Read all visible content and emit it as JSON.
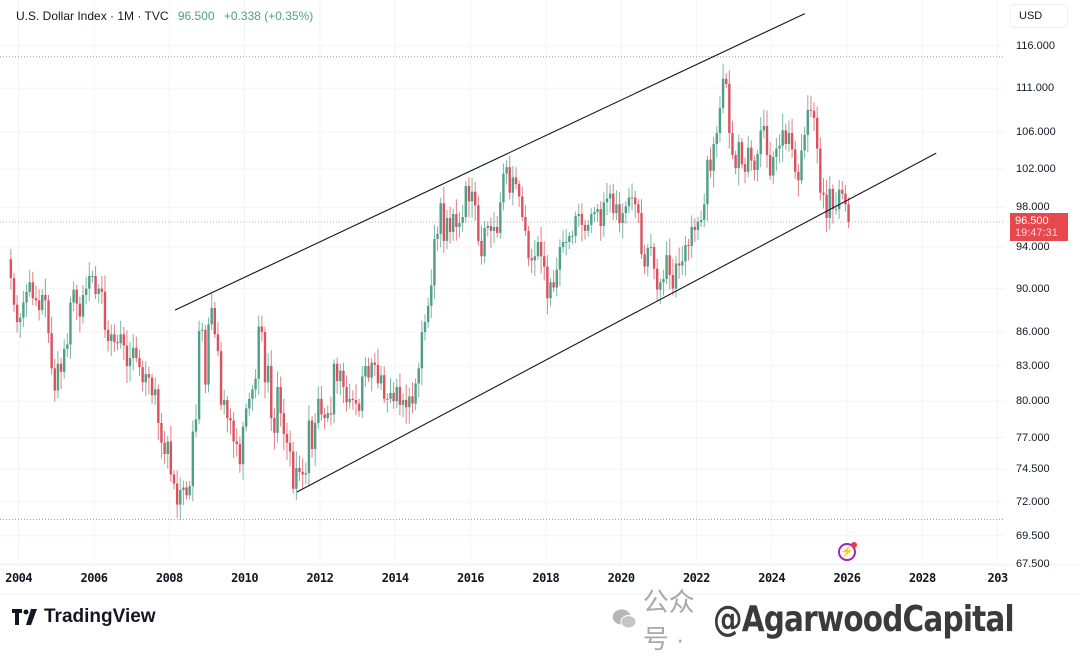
{
  "header": {
    "title": "U.S. Dollar Index · 1M · TVC",
    "last": "96.500",
    "change": "+0.338 (+0.35%)"
  },
  "currency": "USD",
  "price_tag": {
    "price": "96.500",
    "countdown": "19:47:31"
  },
  "footer": {
    "brand": "TradingView"
  },
  "watermark": {
    "cn": "公众号 ·",
    "handle": "@AgarwoodCapital"
  },
  "icons": {
    "alert": "lightning-icon",
    "brand": "tradingview-logo-icon",
    "wechat": "wechat-icon"
  },
  "colors": {
    "up": "#4f9f87",
    "down": "#d9525e",
    "last_price": "#e5484d",
    "trendline": "#131722"
  },
  "chart_data": {
    "type": "candlestick",
    "title": "U.S. Dollar Index · 1M · TVC",
    "y_scale": "log",
    "ylim": [
      67.5,
      120
    ],
    "xlim": [
      2003.7,
      2030.5
    ],
    "y_ticks": [
      "116.000",
      "111.000",
      "106.000",
      "102.000",
      "98.000",
      "94.000",
      "90.000",
      "86.000",
      "83.000",
      "80.000",
      "77.000",
      "74.500",
      "72.000",
      "69.500",
      "67.500"
    ],
    "x_ticks": [
      "2004",
      "2006",
      "2008",
      "2010",
      "2012",
      "2014",
      "2016",
      "2018",
      "2020",
      "2022",
      "2024",
      "2026",
      "2028",
      "203"
    ],
    "grid": true,
    "start": "2003-10",
    "interval": "1M",
    "monthly_close": [
      91.0,
      88.5,
      86.9,
      87.3,
      88.7,
      89.7,
      90.6,
      89.1,
      88.9,
      88.0,
      89.4,
      88.9,
      85.9,
      82.8,
      80.9,
      83.2,
      82.5,
      84.5,
      84.9,
      88.7,
      89.9,
      88.6,
      87.4,
      89.4,
      90.0,
      91.2,
      91.2,
      89.5,
      90.0,
      89.7,
      86.2,
      85.2,
      85.8,
      85.1,
      85.0,
      85.8,
      84.8,
      83.0,
      83.7,
      84.6,
      83.7,
      82.9,
      81.6,
      82.3,
      82.0,
      80.5,
      81.0,
      78.2,
      76.6,
      75.7,
      76.7,
      74.1,
      73.4,
      71.8,
      72.9,
      73.1,
      72.5,
      73.2,
      77.5,
      78.5,
      86.1,
      86.2,
      81.4,
      86.7,
      88.2,
      85.8,
      84.3,
      79.7,
      80.1,
      78.6,
      78.4,
      76.7,
      76.5,
      74.9,
      77.9,
      79.4,
      80.2,
      81.0,
      81.9,
      86.5,
      86.0,
      81.6,
      83.0,
      78.6,
      77.4,
      81.2,
      79.0,
      77.3,
      76.6,
      75.9,
      73.0,
      74.6,
      74.3,
      74.1,
      74.2,
      78.4,
      76.1,
      78.2,
      80.2,
      78.9,
      78.6,
      79.0,
      78.9,
      83.2,
      81.7,
      82.6,
      81.2,
      79.9,
      80.2,
      80.1,
      79.8,
      79.2,
      82.1,
      83.0,
      82.0,
      83.3,
      83.1,
      81.5,
      82.2,
      80.2,
      80.2,
      80.7,
      80.0,
      81.2,
      79.7,
      80.1,
      79.5,
      80.4,
      79.8,
      81.5,
      82.8,
      86.0,
      86.9,
      88.4,
      90.3,
      94.8,
      95.3,
      98.4,
      94.6,
      96.9,
      95.5,
      97.3,
      96.0,
      96.4,
      97.0,
      100.2,
      98.6,
      99.6,
      98.2,
      94.6,
      93.1,
      95.9,
      96.1,
      95.6,
      96.0,
      95.4,
      98.5,
      101.5,
      102.2,
      99.5,
      101.1,
      100.4,
      99.1,
      97.0,
      95.6,
      92.9,
      92.7,
      93.1,
      94.5,
      93.1,
      92.1,
      89.1,
      90.6,
      90.1,
      91.8,
      94.0,
      94.5,
      94.5,
      95.1,
      95.1,
      97.1,
      97.3,
      96.2,
      95.6,
      96.2,
      97.3,
      97.5,
      97.8,
      96.1,
      98.5,
      98.9,
      99.4,
      97.4,
      98.3,
      96.4,
      97.4,
      98.1,
      99.0,
      99.0,
      98.3,
      97.4,
      93.3,
      92.1,
      93.9,
      94.0,
      91.9,
      89.9,
      90.6,
      90.9,
      93.2,
      91.3,
      90.0,
      92.4,
      92.2,
      92.6,
      94.2,
      94.1,
      96.0,
      95.7,
      96.5,
      96.7,
      98.3,
      103.0,
      101.8,
      104.7,
      105.9,
      108.7,
      112.1,
      111.5,
      105.9,
      103.5,
      102.1,
      104.9,
      102.5,
      101.7,
      104.3,
      102.9,
      101.9,
      103.6,
      106.2,
      106.7,
      103.5,
      101.3,
      103.3,
      104.2,
      104.5,
      106.2,
      104.7,
      105.9,
      104.1,
      101.7,
      100.8,
      104.0,
      105.7,
      108.5,
      108.4,
      107.6,
      104.2,
      99.5,
      99.3,
      96.9,
      99.9,
      97.8,
      97.8,
      99.8,
      99.4,
      98.3,
      96.5
    ],
    "trendlines": [
      {
        "from": [
          2008.15,
          88.0
        ],
        "to": [
          2024.88,
          120.0
        ]
      },
      {
        "from": [
          2011.39,
          72.75
        ],
        "to": [
          2028.37,
          103.7
        ]
      }
    ],
    "horizontal_levels": [
      114.7,
      70.7
    ],
    "last_price": 96.5
  }
}
